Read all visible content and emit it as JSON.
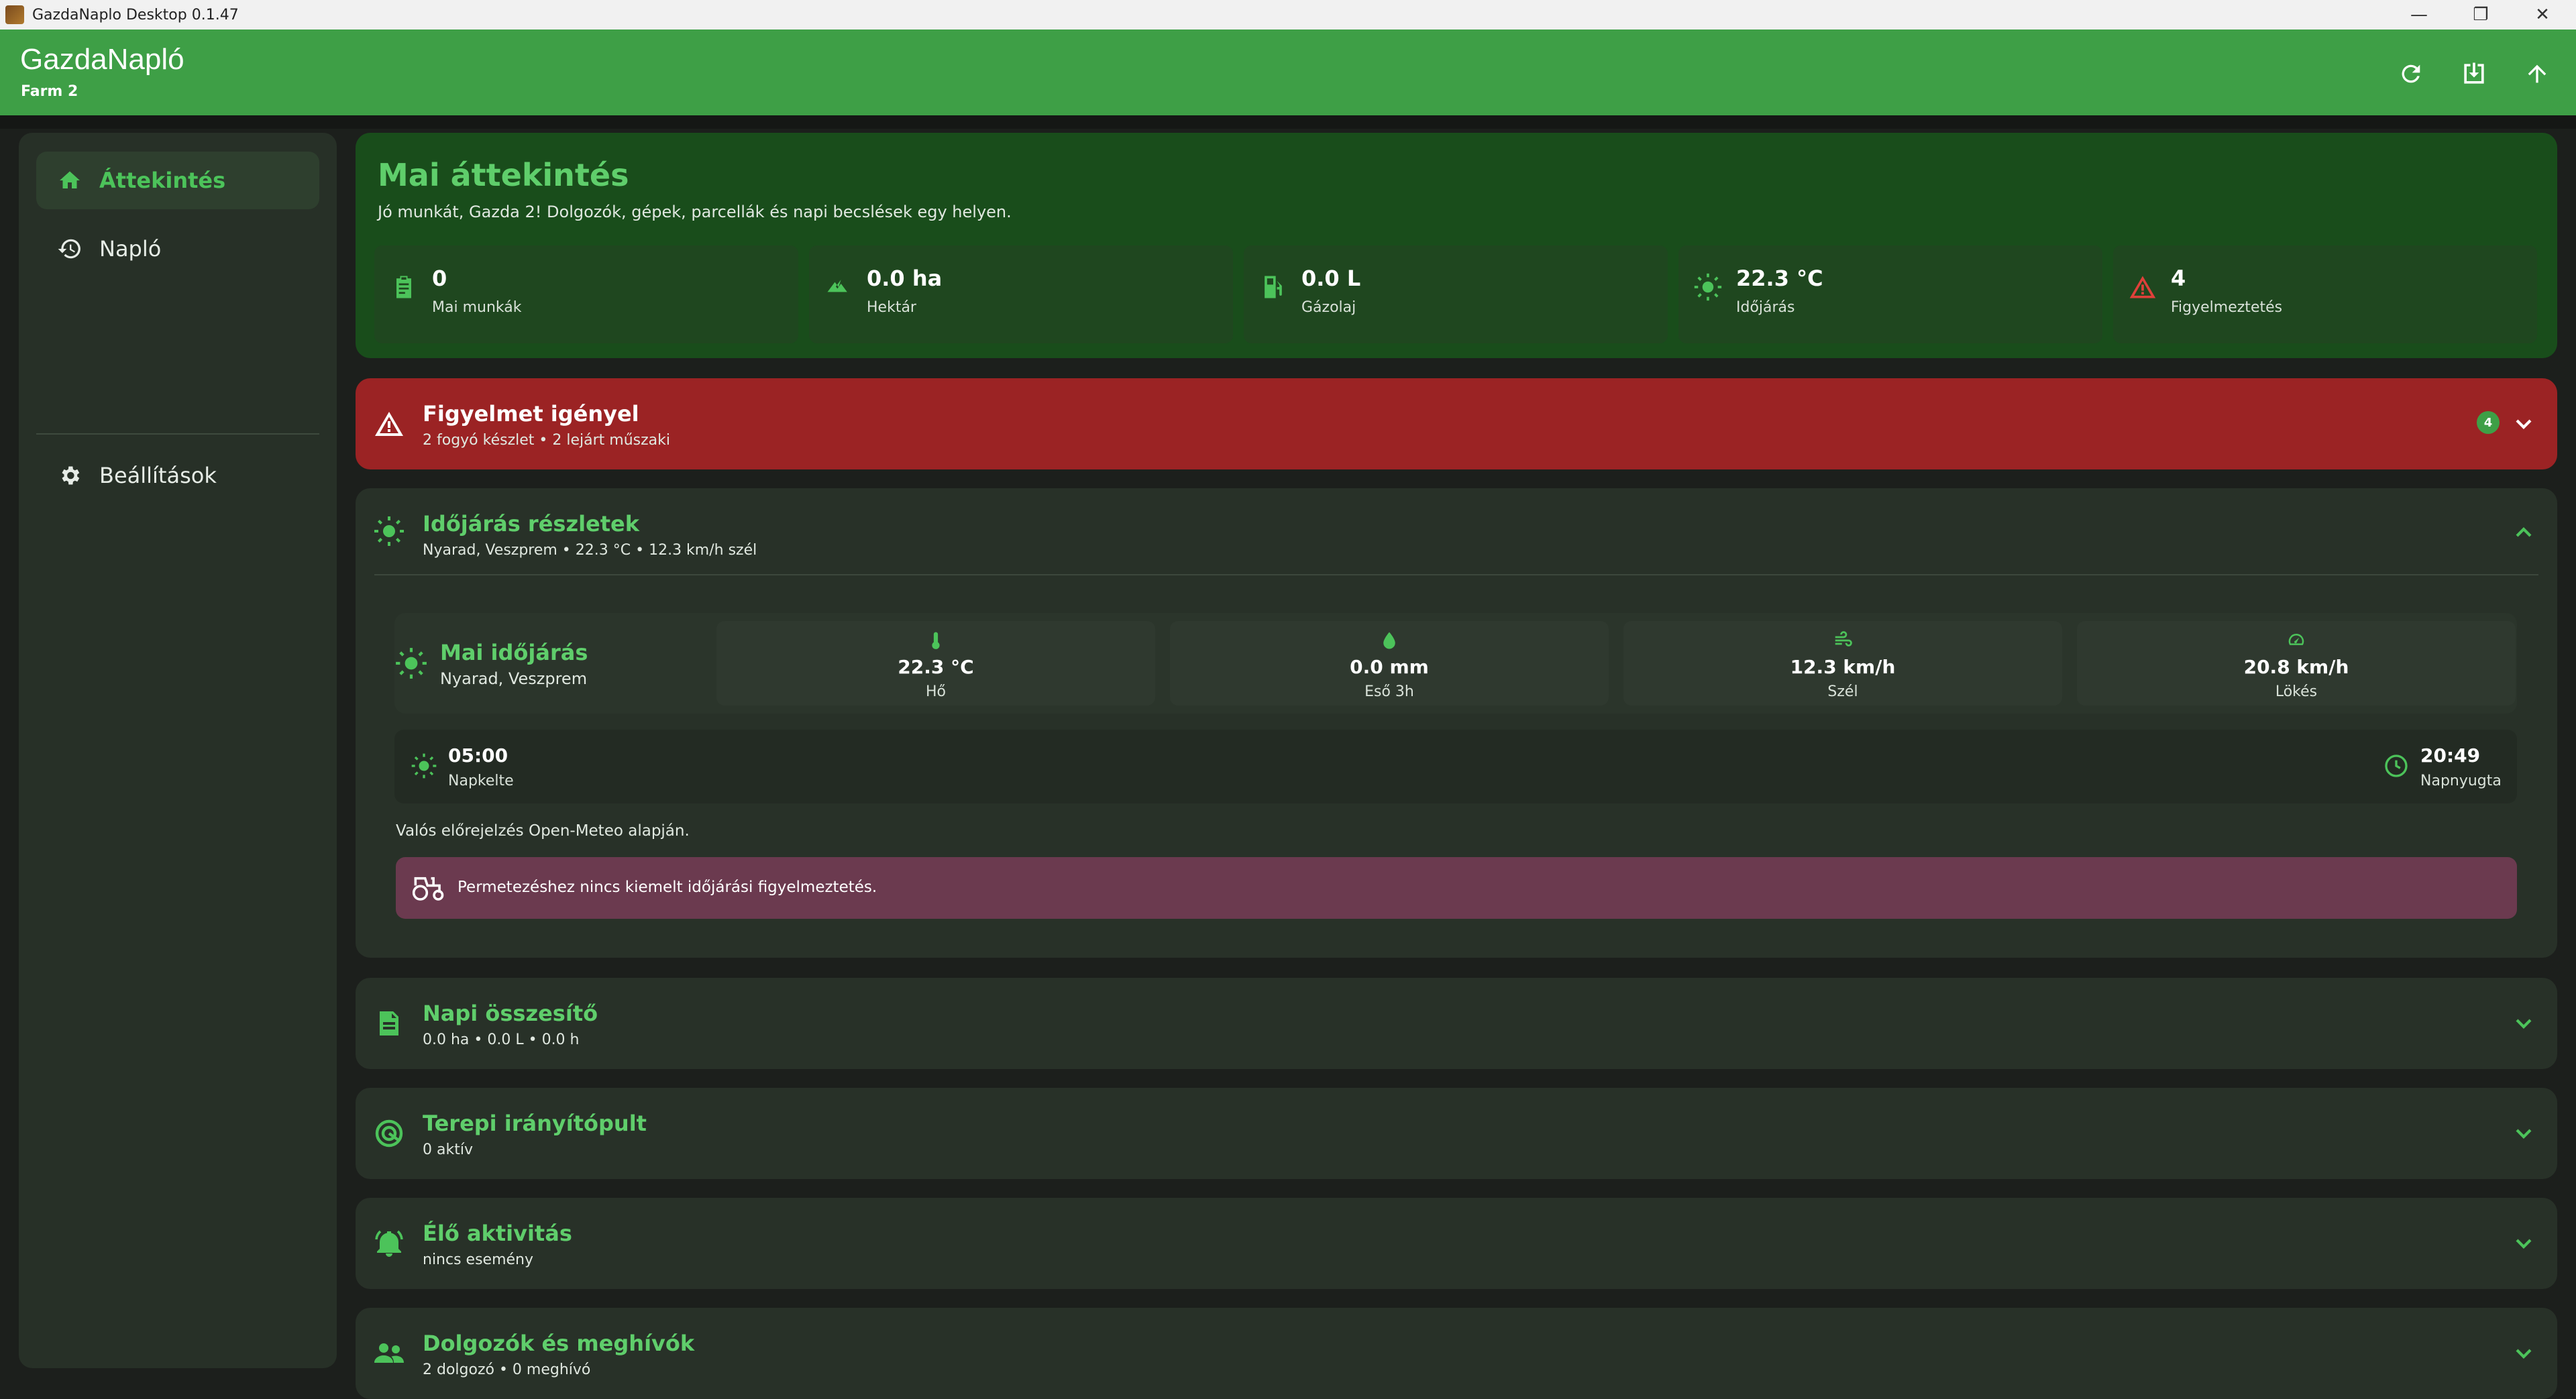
{
  "window": {
    "title": "GazdaNaplo Desktop 0.1.47",
    "minimize": "—",
    "restore": "❐",
    "close": "✕"
  },
  "appbar": {
    "name": "GazdaNapló",
    "farm": "Farm 2"
  },
  "sidebar": {
    "items": [
      {
        "label": "Áttekintés",
        "icon": "home-icon"
      },
      {
        "label": "Napló",
        "icon": "history-icon"
      },
      {
        "label": "Beállítások",
        "icon": "gear-icon"
      }
    ]
  },
  "overview": {
    "title": "Mai áttekintés",
    "subtitle": "Jó munkát, Gazda 2! Dolgozók, gépek, parcellák és napi becslések egy helyen.",
    "stats": [
      {
        "value": "0",
        "label": "Mai munkák"
      },
      {
        "value": "0.0 ha",
        "label": "Hektár"
      },
      {
        "value": "0.0 L",
        "label": "Gázolaj"
      },
      {
        "value": "22.3 °C",
        "label": "Időjárás"
      },
      {
        "value": "4",
        "label": "Figyelmeztetés"
      }
    ]
  },
  "alert": {
    "title": "Figyelmet igényel",
    "subtitle": "2 fogyó készlet • 2 lejárt műszaki",
    "badge": "4"
  },
  "weather": {
    "title": "Időjárás részletek",
    "subtitle": "Nyarad, Veszprem • 22.3 °C • 12.3 km/h szél",
    "today_title": "Mai időjárás",
    "today_location": "Nyarad, Veszprem",
    "metrics": [
      {
        "value": "22.3 °C",
        "label": "Hő"
      },
      {
        "value": "0.0 mm",
        "label": "Eső 3h"
      },
      {
        "value": "12.3 km/h",
        "label": "Szél"
      },
      {
        "value": "20.8 km/h",
        "label": "Lökés"
      }
    ],
    "sunrise_time": "05:00",
    "sunrise_label": "Napkelte",
    "sunset_time": "20:49",
    "sunset_label": "Napnyugta",
    "source_note": "Valós előrejelzés Open-Meteo alapján.",
    "spray_note": "Permetezéshez nincs kiemelt időjárási figyelmeztetés."
  },
  "sections": [
    {
      "title": "Napi összesítő",
      "subtitle": "0.0 ha • 0.0 L • 0.0 h"
    },
    {
      "title": "Terepi irányítópult",
      "subtitle": "0 aktív"
    },
    {
      "title": "Élő aktivitás",
      "subtitle": "nincs esemény"
    },
    {
      "title": "Dolgozók és meghívók",
      "subtitle": "2 dolgozó • 0 meghívó"
    }
  ],
  "colors": {
    "accent": "#3e9f46",
    "accent_text": "#5fce6b",
    "alert": "#9b2324",
    "spray": "#6b3a4f"
  }
}
